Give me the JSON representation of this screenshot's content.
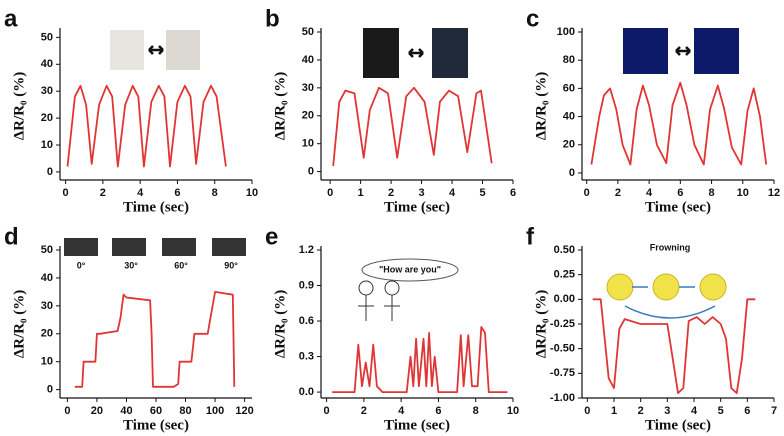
{
  "chart_data": [
    {
      "type": "line",
      "panel_label": "a",
      "xlabel": "Time (sec)",
      "ylabel": "ΔR/R₀ (%)",
      "color": "#e03535",
      "xlim": [
        -0.3,
        10
      ],
      "xticks": [
        0,
        2,
        4,
        6,
        8,
        10
      ],
      "ylim": [
        -3,
        52
      ],
      "yticks": [
        0,
        10,
        20,
        30,
        40,
        50
      ],
      "x": [
        0.1,
        0.5,
        0.8,
        1.1,
        1.4,
        1.8,
        2.2,
        2.5,
        2.8,
        3.2,
        3.6,
        3.9,
        4.2,
        4.6,
        5.0,
        5.3,
        5.6,
        6.0,
        6.4,
        6.7,
        7.0,
        7.4,
        7.8,
        8.1,
        8.6
      ],
      "values": [
        2,
        28,
        32,
        25,
        3,
        25,
        32,
        28,
        2,
        25,
        32,
        28,
        2,
        26,
        32,
        28,
        2,
        26,
        32,
        28,
        3,
        26,
        32,
        28,
        2
      ]
    },
    {
      "type": "line",
      "panel_label": "b",
      "xlabel": "Time (sec)",
      "ylabel": "ΔR/R₀ (%)",
      "color": "#e03535",
      "xlim": [
        -0.3,
        6
      ],
      "xticks": [
        0,
        1,
        2,
        3,
        4,
        5,
        6
      ],
      "ylim": [
        -3,
        50
      ],
      "yticks": [
        0,
        10,
        20,
        30,
        40,
        50
      ],
      "x": [
        0.1,
        0.3,
        0.5,
        0.8,
        1.1,
        1.3,
        1.6,
        1.9,
        2.2,
        2.5,
        2.75,
        3.1,
        3.4,
        3.6,
        3.9,
        4.2,
        4.5,
        4.8,
        4.95,
        5.3
      ],
      "values": [
        2,
        25,
        29,
        28,
        5,
        22,
        30,
        28,
        5,
        27,
        30,
        25,
        6,
        25,
        29,
        27,
        7,
        28,
        29,
        3
      ]
    },
    {
      "type": "line",
      "panel_label": "c",
      "xlabel": "Time (sec)",
      "ylabel": "ΔR/R₀ (%)",
      "color": "#e03535",
      "xlim": [
        -0.3,
        12
      ],
      "xticks": [
        0,
        2,
        4,
        6,
        8,
        10,
        12
      ],
      "ylim": [
        -5,
        100
      ],
      "yticks": [
        0,
        20,
        40,
        60,
        80,
        100
      ],
      "x": [
        0.3,
        0.8,
        1.1,
        1.5,
        1.9,
        2.3,
        2.8,
        3.2,
        3.6,
        4.0,
        4.5,
        5.1,
        5.5,
        6.0,
        6.4,
        6.9,
        7.5,
        7.9,
        8.4,
        8.8,
        9.3,
        9.9,
        10.3,
        10.7,
        11.1,
        11.5
      ],
      "values": [
        6,
        40,
        55,
        60,
        45,
        20,
        6,
        45,
        62,
        48,
        20,
        7,
        48,
        64,
        48,
        20,
        6,
        45,
        62,
        46,
        18,
        6,
        44,
        60,
        40,
        6
      ]
    },
    {
      "type": "line",
      "panel_label": "d",
      "xlabel": "Time (sec)",
      "ylabel": "ΔR/R₀ (%)",
      "color": "#e03535",
      "xlim": [
        -5,
        125
      ],
      "xticks": [
        0,
        20,
        40,
        60,
        80,
        100,
        120
      ],
      "ylim": [
        -3,
        50
      ],
      "yticks": [
        0,
        10,
        20,
        30,
        40,
        50
      ],
      "annotations": [
        "0°",
        "30°",
        "60°",
        "90°"
      ],
      "x": [
        5,
        10,
        11,
        19,
        20,
        22,
        34,
        36,
        38,
        40,
        56,
        57,
        58,
        72,
        75,
        76,
        84,
        86,
        95,
        97,
        100,
        112,
        113
      ],
      "values": [
        1,
        1,
        10,
        10,
        20,
        20,
        21,
        26,
        34,
        33,
        32,
        20,
        1,
        1,
        2,
        10,
        10,
        20,
        20,
        26,
        35,
        34,
        1
      ]
    },
    {
      "type": "line",
      "panel_label": "e",
      "xlabel": "Time (sec)",
      "ylabel": "ΔR/R₀ (%)",
      "color": "#e03535",
      "xlim": [
        -0.3,
        10
      ],
      "xticks": [
        0,
        2,
        4,
        6,
        8,
        10
      ],
      "ylim": [
        -0.05,
        1.2
      ],
      "yticks": [
        {
          "value": 0,
          "label": "0.0"
        },
        0.3,
        0.6,
        0.9,
        1.2
      ],
      "annotations": [
        "\"How are you\""
      ],
      "x": [
        0.3,
        1.5,
        1.7,
        1.9,
        2.1,
        2.3,
        2.5,
        2.7,
        3.0,
        4.3,
        4.5,
        4.65,
        4.8,
        4.95,
        5.2,
        5.35,
        5.5,
        5.65,
        5.8,
        6.0,
        7.0,
        7.2,
        7.35,
        7.6,
        7.8,
        8.1,
        8.3,
        8.5,
        8.7,
        9.7
      ],
      "values": [
        0,
        0,
        0.4,
        0.05,
        0.25,
        0.05,
        0.4,
        0.05,
        0,
        0,
        0.3,
        0.05,
        0.45,
        0.05,
        0.45,
        0.05,
        0.5,
        0.05,
        0.3,
        0,
        0,
        0.48,
        0.05,
        0.48,
        0.05,
        0.05,
        0.55,
        0.5,
        0,
        0
      ]
    },
    {
      "type": "line",
      "panel_label": "f",
      "xlabel": "Time (sec)",
      "ylabel": "ΔR/R₀ (%)",
      "color": "#e03535",
      "xlim": [
        -0.2,
        7
      ],
      "xticks": [
        0,
        1,
        2,
        3,
        4,
        5,
        6,
        7
      ],
      "ylim": [
        -1.0,
        0.5
      ],
      "yticks": [
        {
          "value": 0.5,
          "label": "0.50"
        },
        0.25,
        {
          "value": 0,
          "label": "0.00"
        },
        -0.25,
        {
          "value": -0.5,
          "label": "-0.50"
        },
        -0.75,
        {
          "value": -1,
          "label": "-1.00"
        }
      ],
      "annotations": [
        "Frowning"
      ],
      "x": [
        0.2,
        0.5,
        0.8,
        1.0,
        1.2,
        1.4,
        2.0,
        3.0,
        3.2,
        3.4,
        3.6,
        3.8,
        4.1,
        4.4,
        4.7,
        5.0,
        5.2,
        5.4,
        5.6,
        5.8,
        6.0,
        6.3
      ],
      "values": [
        0,
        0,
        -0.8,
        -0.9,
        -0.3,
        -0.2,
        -0.25,
        -0.25,
        -0.6,
        -0.95,
        -0.9,
        -0.22,
        -0.18,
        -0.25,
        -0.18,
        -0.25,
        -0.4,
        -0.9,
        -0.95,
        -0.6,
        0,
        0
      ]
    }
  ]
}
